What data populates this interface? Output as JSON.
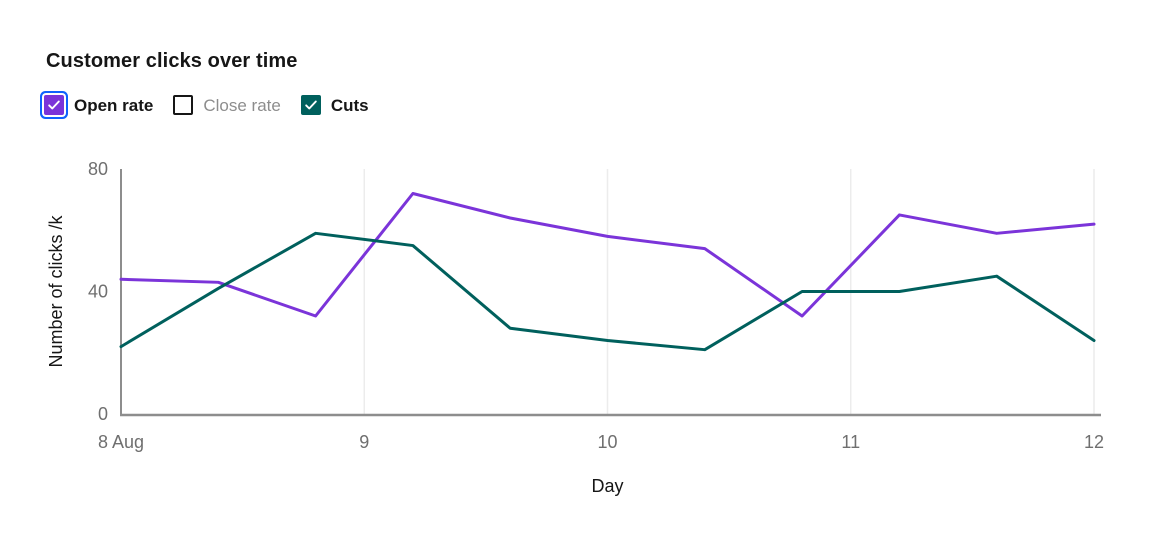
{
  "title": "Customer clicks over time",
  "legend": {
    "items": [
      {
        "label": "Open rate",
        "checked": true,
        "focused": true,
        "color": "#7b34d9"
      },
      {
        "label": "Close rate",
        "checked": false,
        "focused": false,
        "color": "#ffffff"
      },
      {
        "label": "Cuts",
        "checked": true,
        "focused": false,
        "color": "#00605d"
      }
    ]
  },
  "chart_data": {
    "type": "line",
    "title": "Customer clicks over time",
    "xlabel": "Day",
    "ylabel": "Number of clicks /k",
    "x": [
      8,
      8.4,
      8.8,
      9.2,
      9.6,
      10,
      10.4,
      10.8,
      11.2,
      11.6,
      12
    ],
    "series": [
      {
        "name": "Open rate",
        "color": "#7b34d9",
        "values": [
          44,
          43,
          32,
          72,
          64,
          58,
          54,
          32,
          65,
          59,
          62
        ]
      },
      {
        "name": "Cuts",
        "color": "#00605d",
        "values": [
          22,
          41,
          59,
          55,
          28,
          24,
          21,
          40,
          40,
          45,
          24
        ]
      }
    ],
    "hidden_series": [
      "Close rate"
    ],
    "xlim": [
      8,
      12
    ],
    "ylim": [
      0,
      80
    ],
    "yticks": [
      0,
      40,
      80
    ],
    "xticks": [
      {
        "value": 8,
        "label": "8 Aug"
      },
      {
        "value": 9,
        "label": "9"
      },
      {
        "value": 10,
        "label": "10"
      },
      {
        "value": 11,
        "label": "11"
      },
      {
        "value": 12,
        "label": "12"
      }
    ],
    "grid": "vertical",
    "legend_position": "top-left"
  },
  "colors": {
    "text": "#161616",
    "muted_text": "#8d8d8d",
    "tick_text": "#6f6f6f",
    "axis": "#8d8d8d",
    "gridline": "#ececec",
    "focus_ring": "#0f62fe",
    "background": "#ffffff"
  }
}
